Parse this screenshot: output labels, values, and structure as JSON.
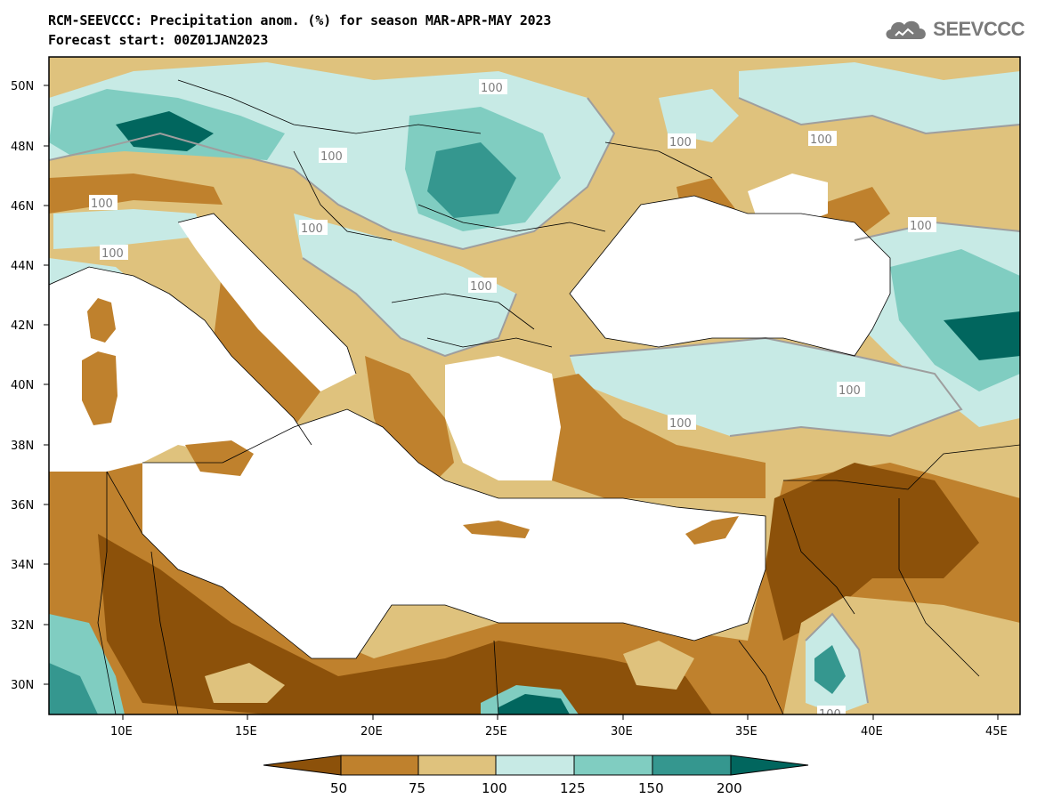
{
  "header": {
    "title_line1": "RCM-SEEVCCC: Precipitation anom. (%) for season MAR-APR-MAY 2023",
    "title_line2": "Forecast start: 00Z01JAN2023",
    "logo_text": "SEEVCCC"
  },
  "map": {
    "lat_labels": [
      "50N",
      "48N",
      "46N",
      "44N",
      "42N",
      "40N",
      "38N",
      "36N",
      "34N",
      "32N",
      "30N"
    ],
    "lon_labels": [
      "10E",
      "15E",
      "20E",
      "25E",
      "30E",
      "35E",
      "40E",
      "45E"
    ],
    "contour_labels": [
      "100",
      "100",
      "100",
      "100",
      "100",
      "100",
      "100",
      "100",
      "100",
      "100",
      "100",
      "100",
      "100"
    ],
    "colors": {
      "lt50": "#8c510a",
      "c50_75": "#bf812d",
      "c75_100": "#dfc27d",
      "c100_125": "#c7eae5",
      "c125_150": "#80cdc1",
      "c150_200": "#35978f",
      "gt200": "#01665e",
      "sea": "#ffffff",
      "contour": "#9e9e9e"
    }
  },
  "colorbar": {
    "ticks": [
      "50",
      "75",
      "100",
      "125",
      "150",
      "200"
    ]
  }
}
